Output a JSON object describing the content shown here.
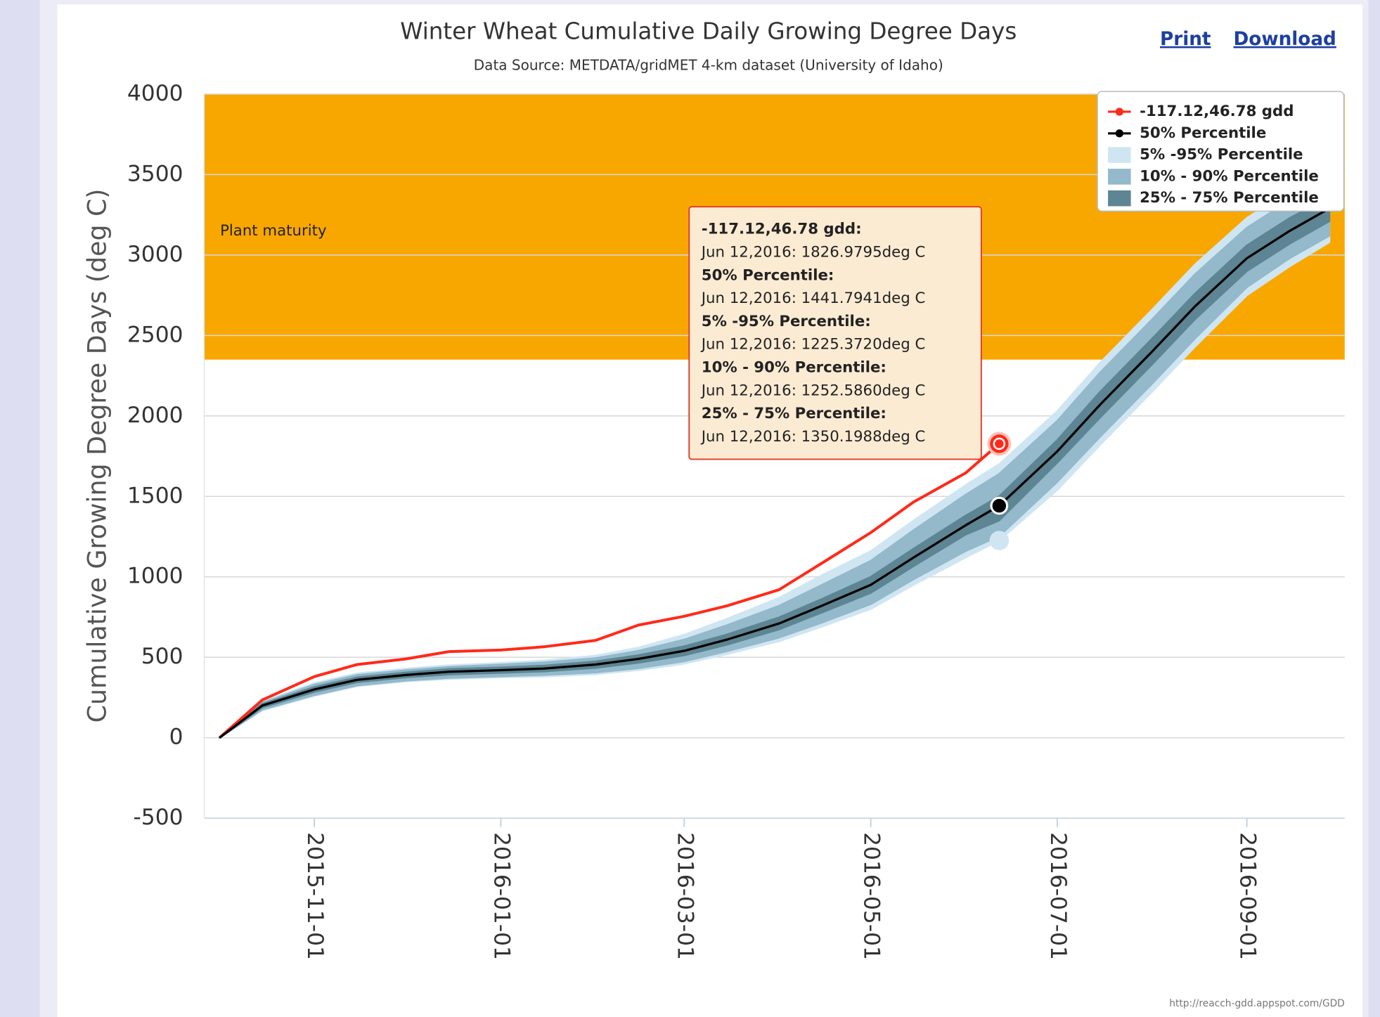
{
  "links": [
    "Print",
    "Download"
  ],
  "credit": "http://reacch-gdd.appspot.com/GDD",
  "chart_data": {
    "type": "line",
    "title": "Winter Wheat Cumulative Daily Growing Degree Days",
    "subtitle": "Data Source: METDATA/gridMET 4-km dataset (University of Idaho)",
    "y_label": "Cumulative Growing Degree Days (deg C)",
    "x": [
      "2015-10-01",
      "2015-10-15",
      "2015-11-01",
      "2015-11-15",
      "2015-12-01",
      "2015-12-15",
      "2016-01-01",
      "2016-01-15",
      "2016-02-01",
      "2016-02-15",
      "2016-03-01",
      "2016-03-15",
      "2016-04-01",
      "2016-04-15",
      "2016-05-01",
      "2016-05-15",
      "2016-06-01",
      "2016-06-12",
      "2016-07-01",
      "2016-07-15",
      "2016-08-01",
      "2016-08-15",
      "2016-09-01",
      "2016-09-15",
      "2016-09-28"
    ],
    "series": [
      {
        "name": "-117.12,46.78 gdd",
        "color": "#ff2a1a",
        "type": "line",
        "values": [
          0,
          235,
          380,
          455,
          490,
          535,
          545,
          565,
          605,
          700,
          755,
          820,
          920,
          1085,
          1275,
          1465,
          1645,
          1826.9795,
          null,
          null,
          null,
          null,
          null,
          null,
          null
        ]
      },
      {
        "name": "50% Percentile",
        "color": "#000000",
        "type": "line",
        "values": [
          0,
          200,
          300,
          360,
          390,
          410,
          420,
          430,
          455,
          490,
          540,
          610,
          710,
          820,
          950,
          1120,
          1320,
          1441.7941,
          1780,
          2070,
          2400,
          2680,
          2980,
          3150,
          3290
        ]
      },
      {
        "name": "5% -95% Percentile",
        "color": "#cfe6f2",
        "type": "band",
        "low": [
          0,
          170,
          260,
          320,
          350,
          365,
          375,
          380,
          395,
          420,
          460,
          520,
          600,
          690,
          800,
          950,
          1120,
          1225.372,
          1540,
          1820,
          2150,
          2430,
          2750,
          2930,
          3080
        ],
        "high": [
          0,
          225,
          340,
          400,
          430,
          450,
          465,
          480,
          510,
          560,
          640,
          740,
          870,
          1010,
          1160,
          1350,
          1570,
          1700,
          2030,
          2330,
          2660,
          2940,
          3230,
          3400,
          3530
        ]
      },
      {
        "name": "10% - 90% Percentile",
        "color": "#93b9cb",
        "type": "band",
        "low": [
          0,
          175,
          265,
          325,
          355,
          372,
          382,
          390,
          405,
          432,
          475,
          538,
          622,
          715,
          830,
          985,
          1160,
          1252.586,
          1590,
          1870,
          2200,
          2480,
          2800,
          2980,
          3120
        ],
        "high": [
          0,
          218,
          330,
          390,
          420,
          440,
          455,
          468,
          495,
          540,
          610,
          700,
          820,
          950,
          1100,
          1290,
          1510,
          1640,
          1970,
          2270,
          2600,
          2880,
          3170,
          3340,
          3460
        ]
      },
      {
        "name": "25% - 75% Percentile",
        "color": "#5d8593",
        "type": "band",
        "low": [
          0,
          188,
          285,
          345,
          375,
          393,
          403,
          412,
          434,
          466,
          512,
          578,
          673,
          778,
          900,
          1066,
          1262,
          1350.1988,
          1710,
          1990,
          2320,
          2600,
          2900,
          3070,
          3210
        ],
        "high": [
          0,
          210,
          315,
          375,
          405,
          427,
          437,
          448,
          474,
          513,
          568,
          642,
          748,
          862,
          1000,
          1175,
          1380,
          1500,
          1850,
          2150,
          2480,
          2760,
          3060,
          3230,
          3360
        ]
      }
    ],
    "xlim": [
      "2015-09-26",
      "2016-10-03"
    ],
    "xticks": [
      "2015-11-01",
      "2016-01-01",
      "2016-03-01",
      "2016-05-01",
      "2016-07-01",
      "2016-09-01"
    ],
    "ylim": [
      -500,
      4000
    ],
    "yticks": [
      -500,
      0,
      500,
      1000,
      1500,
      2000,
      2500,
      3000,
      3500,
      4000
    ],
    "grid": true,
    "legend": "upper right",
    "plot_band": {
      "from": 2350,
      "to": 4000,
      "label": "Plant maturity",
      "color": "#f8a700"
    },
    "tooltip": [
      "-117.12,46.78 gdd:",
      "Jun 12,2016: 1826.9795deg C",
      "50% Percentile:",
      "Jun 12,2016: 1441.7941deg C",
      "5% -95% Percentile:",
      "Jun 12,2016: 1225.3720deg C",
      "10% - 90% Percentile:",
      "Jun 12,2016: 1252.5860deg C",
      "25% - 75% Percentile:",
      "Jun 12,2016: 1350.1988deg C"
    ]
  }
}
